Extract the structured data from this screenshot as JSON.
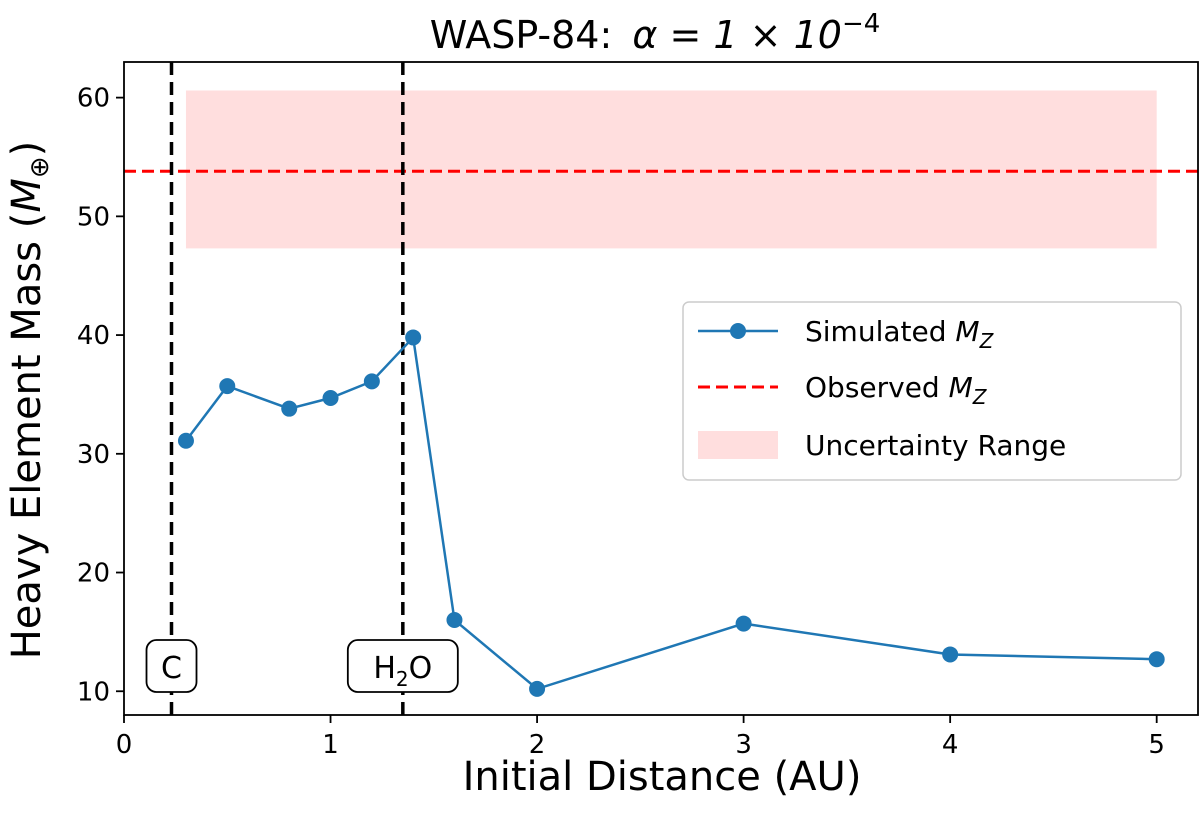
{
  "chart_data": {
    "type": "line",
    "title_prefix": "WASP-84:",
    "title_math": "α = 1 × 10",
    "title_exponent": "−4",
    "xlabel": "Initial Distance (AU)",
    "ylabel_text": "Heavy Element Mass (",
    "ylabel_symbol": "M",
    "ylabel_subscript": "⊕",
    "ylabel_close": ")",
    "xlim": [
      0,
      5.2
    ],
    "ylim": [
      8,
      63
    ],
    "xticks": [
      0,
      1,
      2,
      3,
      4,
      5
    ],
    "yticks": [
      10,
      20,
      30,
      40,
      50,
      60
    ],
    "series": [
      {
        "name": "Simulated",
        "name_symbol": "M",
        "name_subscript": "Z",
        "color": "#1f77b4",
        "x": [
          0.3,
          0.5,
          0.8,
          1.0,
          1.2,
          1.4,
          1.6,
          2.0,
          3.0,
          4.0,
          5.0
        ],
        "y": [
          31.1,
          35.7,
          33.8,
          34.7,
          36.1,
          39.8,
          16.0,
          10.2,
          15.7,
          13.1,
          12.7
        ]
      }
    ],
    "observed": {
      "name": "Observed",
      "name_symbol": "M",
      "name_subscript": "Z",
      "value": 53.8,
      "color": "#ff0000"
    },
    "uncertainty": {
      "name": "Uncertainty Range",
      "x_range": [
        0.3,
        5.0
      ],
      "y_range": [
        47.3,
        60.6
      ],
      "color": "#ffdede"
    },
    "ice_lines": [
      {
        "x": 0.23,
        "label": "C"
      },
      {
        "x": 1.35,
        "label_main": "H",
        "label_sub": "2",
        "label_tail": "O"
      }
    ],
    "legend_position": "center-right"
  }
}
